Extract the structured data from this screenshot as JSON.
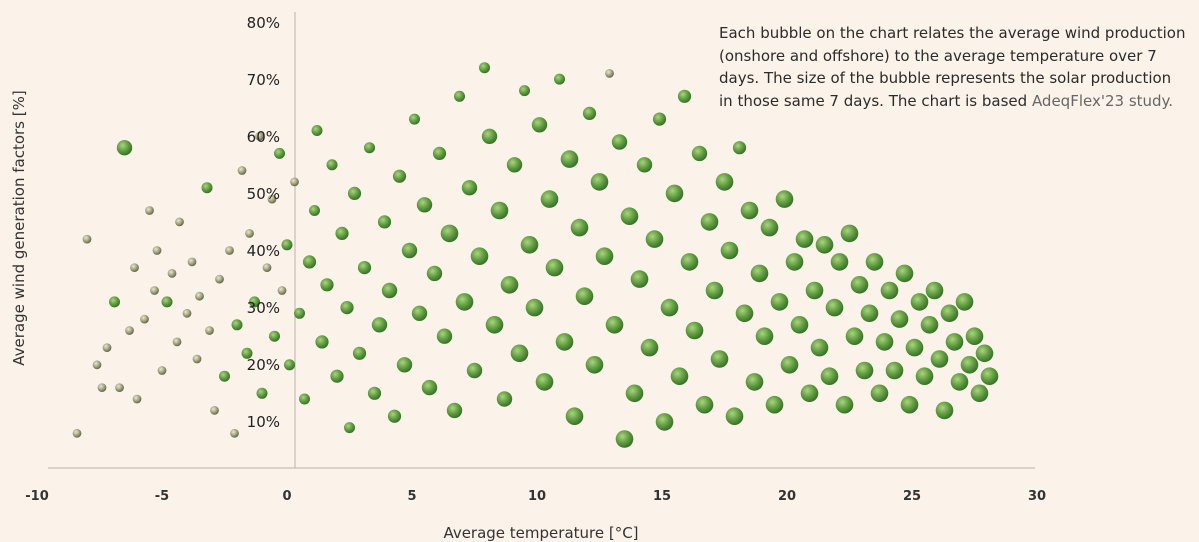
{
  "chart_data": {
    "type": "scatter",
    "title": "",
    "xlabel": "Average temperature [°C]",
    "ylabel": "Average wind generation factors [%]",
    "xlim": [
      -10,
      30
    ],
    "ylim": [
      0,
      80
    ],
    "x_ticks": [
      "-10",
      "-5",
      "0",
      "5",
      "10",
      "15",
      "20",
      "25",
      "30"
    ],
    "y_ticks": [
      "10%",
      "20%",
      "30%",
      "40%",
      "50%",
      "60%",
      "70%",
      "80%"
    ],
    "bubble_color": "#5a9a3a",
    "bubble_color_dark": "#2f6b1f",
    "annotation": {
      "text": "Each bubble on the chart relates the average wind production (onshore and offshore) to the average temperature over 7 days. The size of the bubble represents the solar production in those same 7 days. The chart is based",
      "source": "AdeqFlex'23 study."
    },
    "series": [
      {
        "bubbles": [
          [
            -8.4,
            8,
            1
          ],
          [
            -8,
            42,
            1
          ],
          [
            -7.6,
            20,
            1
          ],
          [
            -7.4,
            16,
            1
          ],
          [
            -7.2,
            23,
            1
          ],
          [
            -6.9,
            31,
            1.5
          ],
          [
            -6.7,
            16,
            1
          ],
          [
            -6.5,
            58,
            2.5
          ],
          [
            -6.3,
            26,
            1
          ],
          [
            -6.1,
            37,
            1
          ],
          [
            -6,
            14,
            1
          ],
          [
            -5.7,
            28,
            1
          ],
          [
            -5.5,
            47,
            1
          ],
          [
            -5.3,
            33,
            1
          ],
          [
            -5.2,
            40,
            1
          ],
          [
            -5,
            19,
            1
          ],
          [
            -4.8,
            31,
            1.5
          ],
          [
            -4.6,
            36,
            1
          ],
          [
            -4.4,
            24,
            1
          ],
          [
            -4.3,
            45,
            1
          ],
          [
            -4,
            29,
            1
          ],
          [
            -3.8,
            38,
            1
          ],
          [
            -3.6,
            21,
            1
          ],
          [
            -3.5,
            32,
            1
          ],
          [
            -3.2,
            51,
            1.5
          ],
          [
            -3.1,
            26,
            1
          ],
          [
            -2.9,
            12,
            1
          ],
          [
            -2.7,
            35,
            1
          ],
          [
            -2.5,
            18,
            1.5
          ],
          [
            -2.3,
            40,
            1
          ],
          [
            -2.1,
            8,
            1
          ],
          [
            -2,
            27,
            1.5
          ],
          [
            -1.8,
            54,
            1
          ],
          [
            -1.6,
            22,
            1.5
          ],
          [
            -1.5,
            43,
            1
          ],
          [
            -1.3,
            31,
            1.5
          ],
          [
            -1.1,
            60,
            1
          ],
          [
            -1,
            15,
            1.5
          ],
          [
            -0.8,
            37,
            1
          ],
          [
            -0.6,
            49,
            1
          ],
          [
            -0.5,
            25,
            1.5
          ],
          [
            -0.3,
            57,
            1.5
          ],
          [
            -0.2,
            33,
            1
          ],
          [
            0,
            41,
            1.5
          ],
          [
            0.1,
            20,
            1.5
          ],
          [
            0.3,
            52,
            1
          ],
          [
            0.5,
            29,
            1.5
          ],
          [
            0.7,
            14,
            1.5
          ],
          [
            0.9,
            38,
            2
          ],
          [
            1.1,
            47,
            1.5
          ],
          [
            1.2,
            61,
            1.5
          ],
          [
            1.4,
            24,
            2
          ],
          [
            1.6,
            34,
            2
          ],
          [
            1.8,
            55,
            1.5
          ],
          [
            2,
            18,
            2
          ],
          [
            2.2,
            43,
            2
          ],
          [
            2.4,
            30,
            2
          ],
          [
            2.5,
            9,
            1.5
          ],
          [
            2.7,
            50,
            2
          ],
          [
            2.9,
            22,
            2
          ],
          [
            3.1,
            37,
            2
          ],
          [
            3.3,
            58,
            1.5
          ],
          [
            3.5,
            15,
            2
          ],
          [
            3.7,
            27,
            2.5
          ],
          [
            3.9,
            45,
            2
          ],
          [
            4.1,
            33,
            2.5
          ],
          [
            4.3,
            11,
            2
          ],
          [
            4.5,
            53,
            2
          ],
          [
            4.7,
            20,
            2.5
          ],
          [
            4.9,
            40,
            2.5
          ],
          [
            5.1,
            63,
            1.5
          ],
          [
            5.3,
            29,
            2.5
          ],
          [
            5.5,
            48,
            2.5
          ],
          [
            5.7,
            16,
            2.5
          ],
          [
            5.9,
            36,
            2.5
          ],
          [
            6.1,
            57,
            2
          ],
          [
            6.3,
            25,
            2.5
          ],
          [
            6.5,
            43,
            3
          ],
          [
            6.7,
            12,
            2.5
          ],
          [
            6.9,
            67,
            1.5
          ],
          [
            7.1,
            31,
            3
          ],
          [
            7.3,
            51,
            2.5
          ],
          [
            7.5,
            19,
            2.5
          ],
          [
            7.7,
            39,
            3
          ],
          [
            7.9,
            72,
            1.5
          ],
          [
            8.1,
            60,
            2.5
          ],
          [
            8.3,
            27,
            3
          ],
          [
            8.5,
            47,
            3
          ],
          [
            8.7,
            14,
            2.5
          ],
          [
            8.9,
            34,
            3
          ],
          [
            9.1,
            55,
            2.5
          ],
          [
            9.3,
            22,
            3
          ],
          [
            9.5,
            68,
            1.5
          ],
          [
            9.7,
            41,
            3
          ],
          [
            9.9,
            30,
            3
          ],
          [
            10.1,
            62,
            2.5
          ],
          [
            10.3,
            17,
            3
          ],
          [
            10.5,
            49,
            3
          ],
          [
            10.7,
            37,
            3
          ],
          [
            10.9,
            70,
            1.5
          ],
          [
            11.1,
            24,
            3
          ],
          [
            11.3,
            56,
            3
          ],
          [
            11.5,
            11,
            3
          ],
          [
            11.7,
            44,
            3
          ],
          [
            11.9,
            32,
            3
          ],
          [
            12.1,
            64,
            2
          ],
          [
            12.3,
            20,
            3
          ],
          [
            12.5,
            52,
            3
          ],
          [
            12.7,
            39,
            3
          ],
          [
            12.9,
            71,
            1
          ],
          [
            13.1,
            27,
            3
          ],
          [
            13.3,
            59,
            2.5
          ],
          [
            13.5,
            7,
            3
          ],
          [
            13.7,
            46,
            3
          ],
          [
            13.9,
            15,
            3
          ],
          [
            14.1,
            35,
            3
          ],
          [
            14.3,
            55,
            2.5
          ],
          [
            14.5,
            23,
            3
          ],
          [
            14.7,
            42,
            3
          ],
          [
            14.9,
            63,
            2
          ],
          [
            15.1,
            10,
            3
          ],
          [
            15.3,
            30,
            3
          ],
          [
            15.5,
            50,
            3
          ],
          [
            15.7,
            18,
            3
          ],
          [
            15.9,
            67,
            2
          ],
          [
            16.1,
            38,
            3
          ],
          [
            16.3,
            26,
            3
          ],
          [
            16.5,
            57,
            2.5
          ],
          [
            16.7,
            13,
            3
          ],
          [
            16.9,
            45,
            3
          ],
          [
            17.1,
            33,
            3
          ],
          [
            17.3,
            21,
            3
          ],
          [
            17.5,
            52,
            3
          ],
          [
            17.7,
            40,
            3
          ],
          [
            17.9,
            11,
            3
          ],
          [
            18.1,
            58,
            2
          ],
          [
            18.3,
            29,
            3
          ],
          [
            18.5,
            47,
            3
          ],
          [
            18.7,
            17,
            3
          ],
          [
            18.9,
            36,
            3
          ],
          [
            19.1,
            25,
            3
          ],
          [
            19.3,
            44,
            3
          ],
          [
            19.5,
            13,
            3
          ],
          [
            19.7,
            31,
            3
          ],
          [
            19.9,
            49,
            3
          ],
          [
            20.1,
            20,
            3
          ],
          [
            20.3,
            38,
            3
          ],
          [
            20.5,
            27,
            3
          ],
          [
            20.7,
            42,
            3
          ],
          [
            20.9,
            15,
            3
          ],
          [
            21.1,
            33,
            3
          ],
          [
            21.3,
            23,
            3
          ],
          [
            21.5,
            41,
            3
          ],
          [
            21.7,
            18,
            3
          ],
          [
            21.9,
            30,
            3
          ],
          [
            22.1,
            38,
            3
          ],
          [
            22.3,
            13,
            3
          ],
          [
            22.5,
            43,
            3
          ],
          [
            22.7,
            25,
            3
          ],
          [
            22.9,
            34,
            3
          ],
          [
            23.1,
            19,
            3
          ],
          [
            23.3,
            29,
            3
          ],
          [
            23.5,
            38,
            3
          ],
          [
            23.7,
            15,
            3
          ],
          [
            23.9,
            24,
            3
          ],
          [
            24.1,
            33,
            3
          ],
          [
            24.3,
            19,
            3
          ],
          [
            24.5,
            28,
            3
          ],
          [
            24.7,
            36,
            3
          ],
          [
            24.9,
            13,
            3
          ],
          [
            25.1,
            23,
            3
          ],
          [
            25.3,
            31,
            3
          ],
          [
            25.5,
            18,
            3
          ],
          [
            25.7,
            27,
            3
          ],
          [
            25.9,
            33,
            3
          ],
          [
            26.1,
            21,
            3
          ],
          [
            26.3,
            12,
            3
          ],
          [
            26.5,
            29,
            3
          ],
          [
            26.7,
            24,
            3
          ],
          [
            26.9,
            17,
            3
          ],
          [
            27.1,
            31,
            3
          ],
          [
            27.3,
            20,
            3
          ],
          [
            27.5,
            25,
            3
          ],
          [
            27.7,
            15,
            3
          ],
          [
            27.9,
            22,
            3
          ],
          [
            28.1,
            18,
            3
          ]
        ]
      }
    ]
  }
}
